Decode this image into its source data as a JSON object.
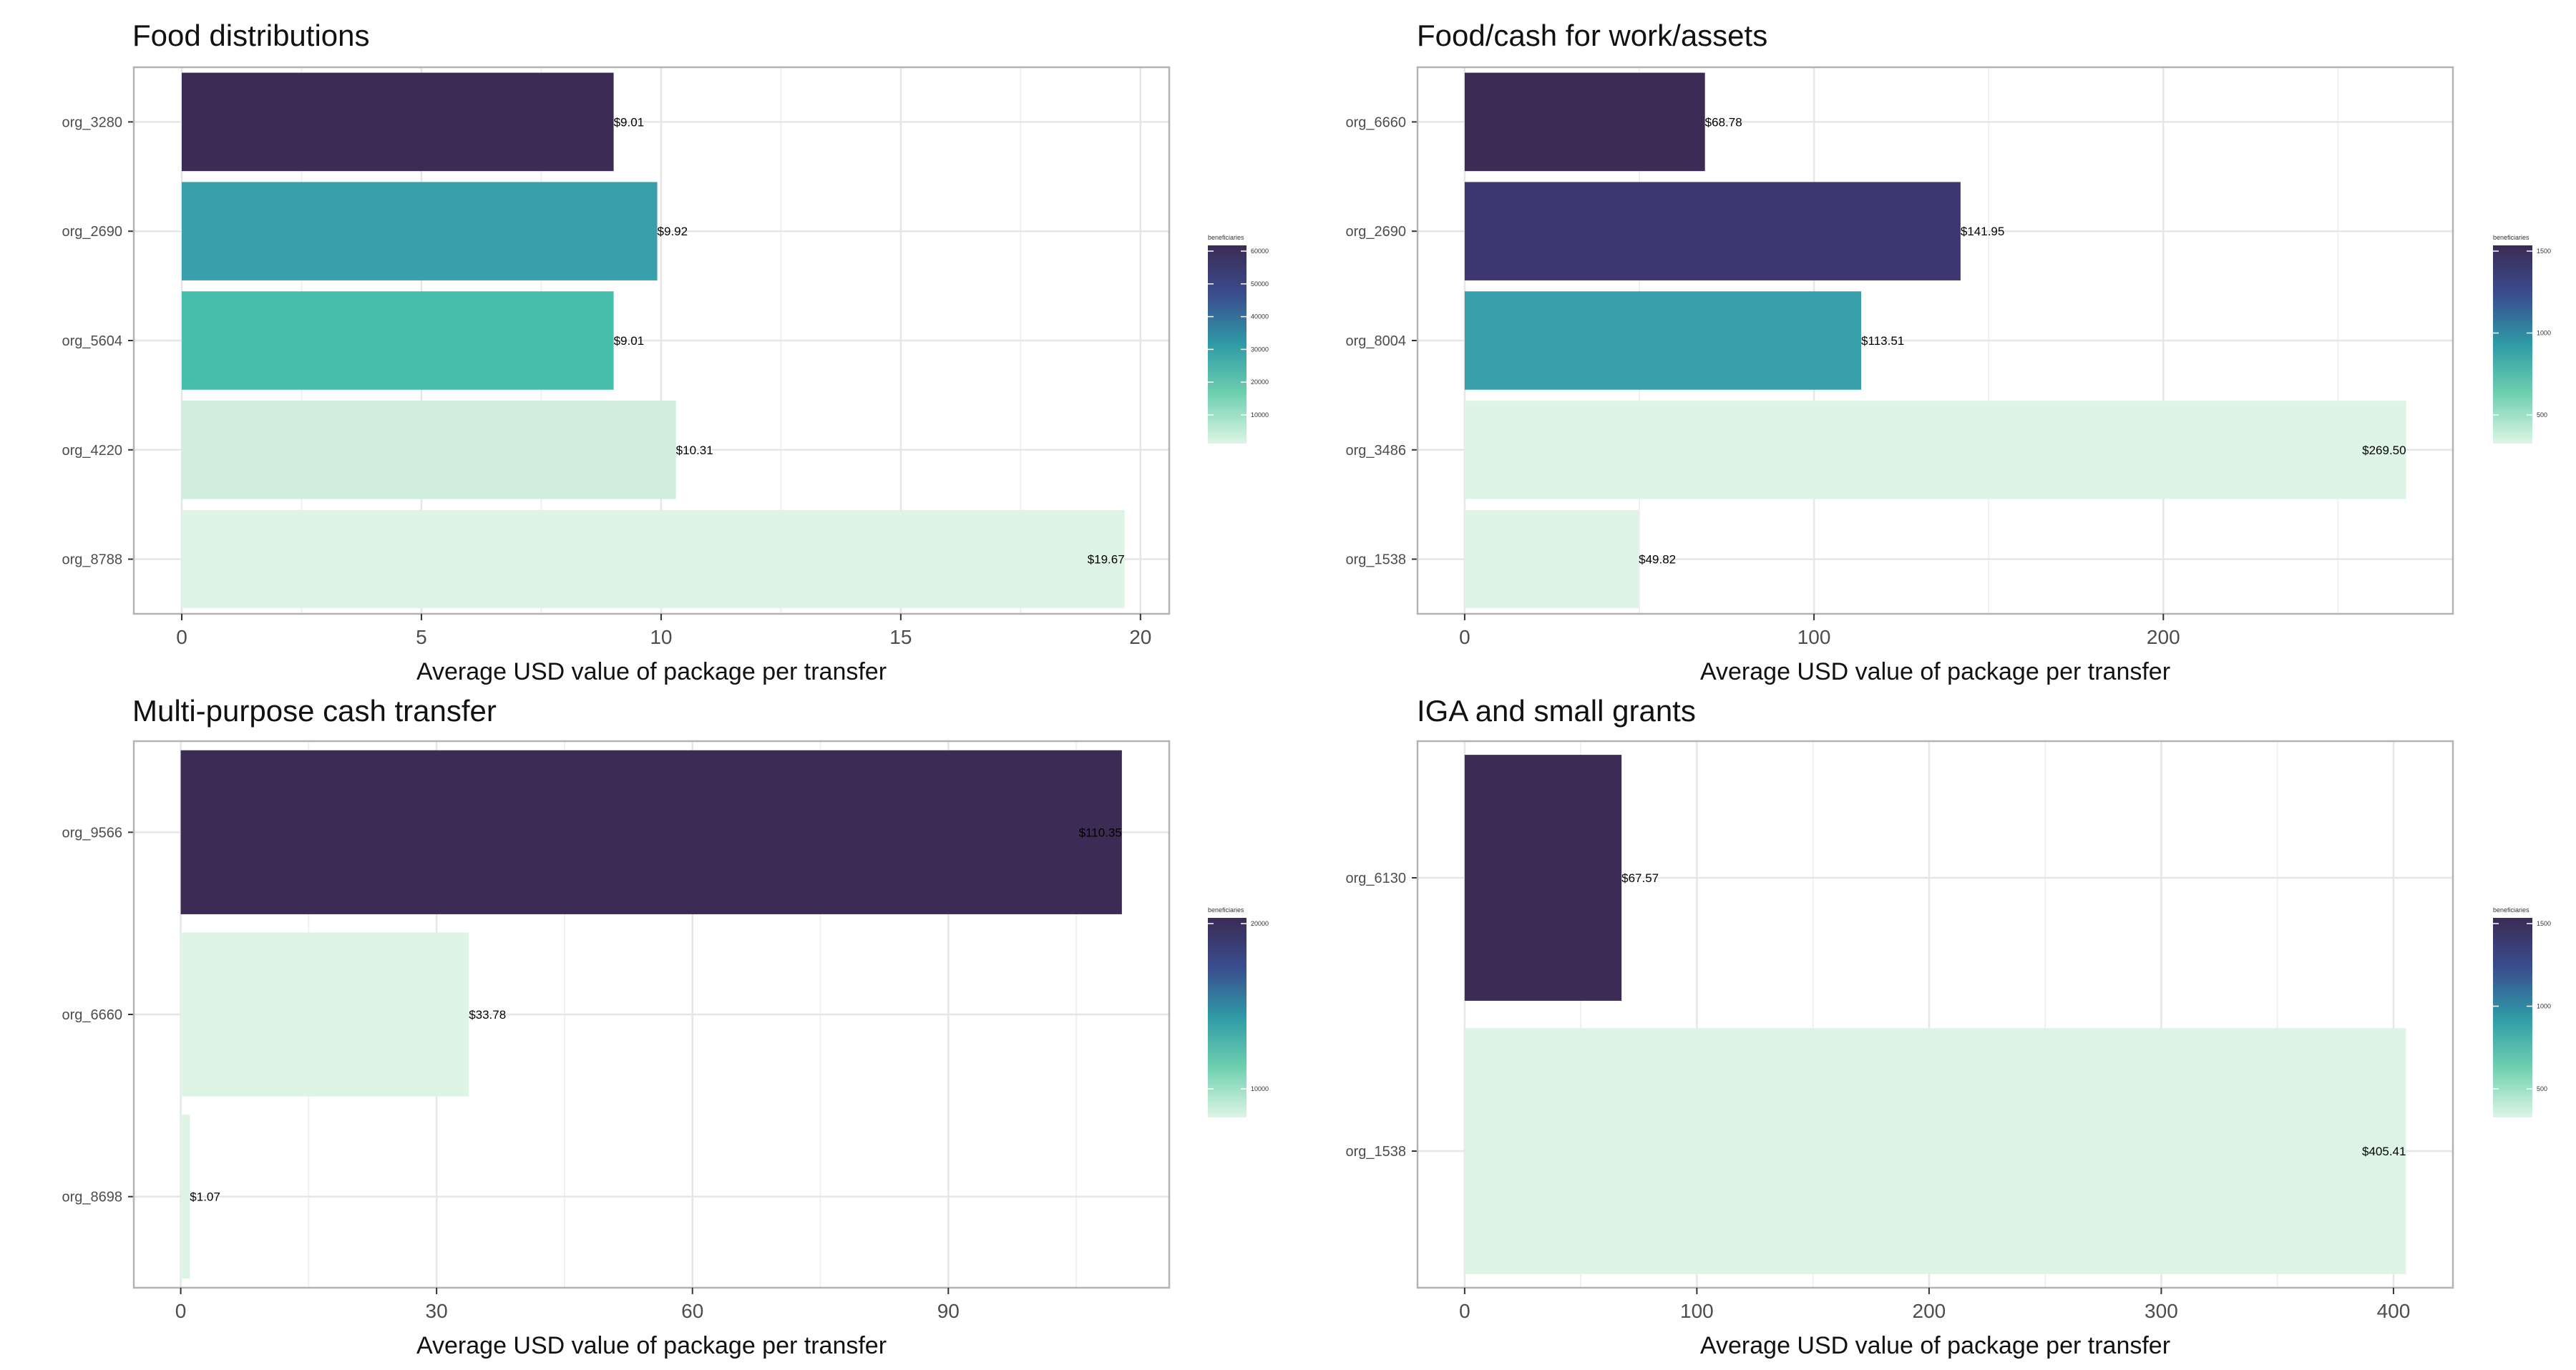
{
  "chart_data": [
    {
      "type": "bar",
      "orientation": "horizontal",
      "title": "Food distributions",
      "xlabel": "Average USD value of package per transfer",
      "ylabel": "",
      "xlim": [
        -1,
        20.6
      ],
      "xticks": [
        0,
        5,
        10,
        15,
        20
      ],
      "categories": [
        "org_3280",
        "org_2690",
        "org_5604",
        "org_4220",
        "org_8788"
      ],
      "values": [
        9.01,
        9.92,
        9.01,
        10.31,
        19.67
      ],
      "labels": [
        "$9.01",
        "$9.92",
        "$9.01",
        "$10.31",
        "$19.67"
      ],
      "colors": [
        "#3b2b55",
        "#37a0ab",
        "#48bfad",
        "#d1eedc",
        "#def5e5"
      ],
      "legend": {
        "title": "beneficiaries",
        "position": "right",
        "ticks": [
          "60000",
          "50000",
          "40000",
          "30000",
          "20000",
          "10000"
        ]
      },
      "grid": true
    },
    {
      "type": "bar",
      "orientation": "horizontal",
      "title": "Food/cash for work/assets",
      "xlabel": "Average USD value of package per transfer",
      "ylabel": "",
      "xlim": [
        -13.5,
        282.9
      ],
      "xticks": [
        0,
        100,
        200
      ],
      "categories": [
        "org_6660",
        "org_2690",
        "org_8004",
        "org_3486",
        "org_1538"
      ],
      "values": [
        68.78,
        141.95,
        113.51,
        269.5,
        49.82
      ],
      "labels": [
        "$68.78",
        "$141.95",
        "$113.51",
        "$269.50",
        "$49.82"
      ],
      "colors": [
        "#3b2b55",
        "#3e3670",
        "#37a0ab",
        "#def5e5",
        "#def5e5"
      ],
      "legend": {
        "title": "beneficiaries",
        "position": "right",
        "ticks": [
          "1500",
          "1000",
          "500"
        ]
      },
      "grid": true
    },
    {
      "type": "bar",
      "orientation": "horizontal",
      "title": "Multi-purpose cash transfer",
      "xlabel": "Average USD value of package per transfer",
      "ylabel": "",
      "xlim": [
        -5.5,
        115.9
      ],
      "xticks": [
        0,
        30,
        60,
        90
      ],
      "categories": [
        "org_9566",
        "org_6660",
        "org_8698"
      ],
      "values": [
        110.35,
        33.78,
        1.07
      ],
      "labels": [
        "$110.35",
        "$33.78",
        "$1.07"
      ],
      "colors": [
        "#3b2b55",
        "#def5e5",
        "#def5e5"
      ],
      "legend": {
        "title": "beneficiaries",
        "position": "right",
        "ticks": [
          "20000",
          "10000"
        ]
      },
      "grid": true
    },
    {
      "type": "bar",
      "orientation": "horizontal",
      "title": "IGA and small grants",
      "xlabel": "Average USD value of package per transfer",
      "ylabel": "",
      "xlim": [
        -20.3,
        425.6
      ],
      "xticks": [
        0,
        100,
        200,
        300,
        400
      ],
      "categories": [
        "org_6130",
        "org_1538"
      ],
      "values": [
        67.57,
        405.41
      ],
      "labels": [
        "$67.57",
        "$405.41"
      ],
      "colors": [
        "#3b2b55",
        "#def5e5"
      ],
      "legend": {
        "title": "beneficiaries",
        "position": "right",
        "ticks": [
          "1500",
          "1000",
          "500"
        ]
      },
      "grid": true
    }
  ]
}
